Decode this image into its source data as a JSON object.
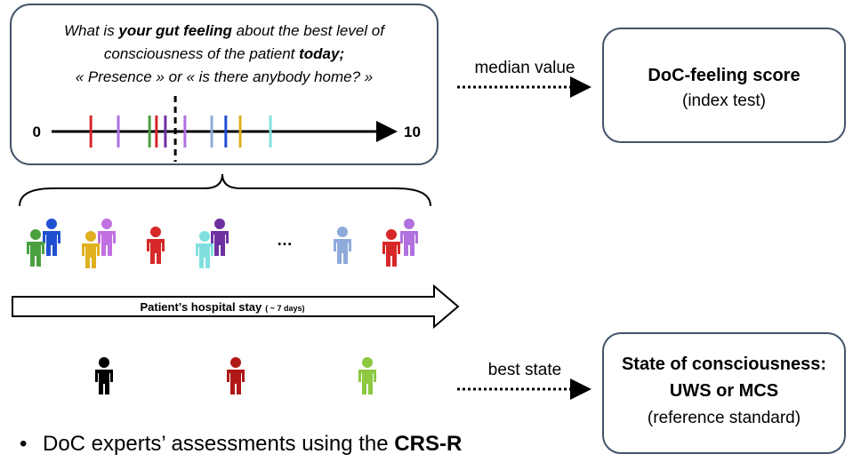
{
  "question": {
    "lines": [
      [
        {
          "text": "What is ",
          "bold": false
        },
        {
          "text": "your gut feeling",
          "bold": true
        },
        {
          "text": " about the best level of",
          "bold": false
        }
      ],
      [
        {
          "text": "consciousness of the patient ",
          "bold": false
        },
        {
          "text": "today;",
          "bold": true
        }
      ],
      [
        {
          "text": "« Presence » or « is there anybody home? »",
          "bold": false
        }
      ]
    ]
  },
  "scale": {
    "min_label": "0",
    "max_label": "10",
    "min": 0,
    "max": 10,
    "median": 3.5,
    "ratings": [
      {
        "value": 1.04,
        "color": "#d62828"
      },
      {
        "value": 1.84,
        "color": "#b070e0"
      },
      {
        "value": 2.75,
        "color": "#4aa040"
      },
      {
        "value": 2.95,
        "color": "#d62828"
      },
      {
        "value": 3.21,
        "color": "#7030a0"
      },
      {
        "value": 3.78,
        "color": "#b070e0"
      },
      {
        "value": 4.56,
        "color": "#8eaadb"
      },
      {
        "value": 4.97,
        "color": "#2050d0"
      },
      {
        "value": 5.39,
        "color": "#e0b020"
      },
      {
        "value": 6.27,
        "color": "#80e0e0"
      }
    ]
  },
  "ellipsis": "…",
  "median_label": "median value",
  "index_box": {
    "title": "DoC-feeling score",
    "subtitle": "(index test)"
  },
  "stay_arrow": {
    "label": "Patient’s hospital stay",
    "duration": "( ~ 7 days)"
  },
  "best_label": "best state",
  "reference_box": {
    "title": "State of consciousness:",
    "line2": "UWS or MCS",
    "subtitle": "(reference standard)"
  },
  "bullet": {
    "marker": "•",
    "text": "DoC experts’ assessments using the ",
    "emphasis": "CRS-R"
  }
}
